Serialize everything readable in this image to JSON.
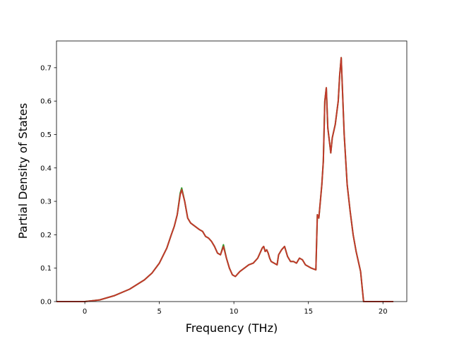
{
  "chart_data": {
    "type": "line",
    "title": "",
    "xlabel": "Frequency (THz)",
    "ylabel": "Partial Density of States",
    "xlim": [
      -1.9,
      21.6
    ],
    "ylim": [
      0.0,
      0.78
    ],
    "x_ticks": [
      0,
      5,
      10,
      15,
      20
    ],
    "y_ticks": [
      0.0,
      0.1,
      0.2,
      0.3,
      0.4,
      0.5,
      0.6,
      0.7
    ],
    "x_tick_labels": [
      "0",
      "5",
      "10",
      "15",
      "20"
    ],
    "y_tick_labels": [
      "0.0",
      "0.1",
      "0.2",
      "0.3",
      "0.4",
      "0.5",
      "0.6",
      "0.7"
    ],
    "grid": false,
    "legend": "none",
    "series": [
      {
        "color": "#2ca02c",
        "x": [
          -1.9,
          0.0,
          1.0,
          2.0,
          3.0,
          4.0,
          4.5,
          5.0,
          5.5,
          5.8,
          6.0,
          6.2,
          6.4,
          6.5,
          6.7,
          6.9,
          7.1,
          7.4,
          7.7,
          7.9,
          8.1,
          8.3,
          8.5,
          8.7,
          8.9,
          9.1,
          9.3,
          9.5,
          9.7,
          9.9,
          10.1,
          10.4,
          10.7,
          11.0,
          11.3,
          11.6,
          11.9,
          12.0,
          12.1,
          12.2,
          12.3,
          12.4,
          12.5,
          12.7,
          12.9,
          13.0,
          13.2,
          13.4,
          13.6,
          13.8,
          14.0,
          14.2,
          14.4,
          14.6,
          14.8,
          15.0,
          15.2,
          15.5,
          15.6,
          15.7,
          15.9,
          16.0,
          16.1,
          16.2,
          16.3,
          16.5,
          16.6,
          16.8,
          17.0,
          17.1,
          17.2,
          17.4,
          17.6,
          17.8,
          18.0,
          18.2,
          18.5,
          18.7,
          19.0,
          20.7
        ],
        "values": [
          0.0,
          0.0,
          0.005,
          0.018,
          0.037,
          0.065,
          0.085,
          0.115,
          0.16,
          0.2,
          0.225,
          0.26,
          0.325,
          0.34,
          0.3,
          0.25,
          0.235,
          0.225,
          0.215,
          0.21,
          0.195,
          0.19,
          0.18,
          0.165,
          0.145,
          0.14,
          0.17,
          0.13,
          0.1,
          0.08,
          0.075,
          0.09,
          0.1,
          0.11,
          0.115,
          0.13,
          0.16,
          0.165,
          0.15,
          0.155,
          0.145,
          0.13,
          0.12,
          0.115,
          0.11,
          0.14,
          0.155,
          0.165,
          0.135,
          0.12,
          0.12,
          0.115,
          0.13,
          0.125,
          0.11,
          0.105,
          0.1,
          0.095,
          0.26,
          0.25,
          0.35,
          0.42,
          0.6,
          0.64,
          0.52,
          0.445,
          0.49,
          0.53,
          0.6,
          0.68,
          0.73,
          0.5,
          0.35,
          0.27,
          0.2,
          0.15,
          0.09,
          0.0,
          0.0,
          0.0
        ]
      },
      {
        "color": "#c0392b",
        "x": [
          -1.9,
          0.0,
          1.0,
          2.0,
          3.0,
          4.0,
          4.5,
          5.0,
          5.5,
          5.8,
          6.0,
          6.2,
          6.4,
          6.5,
          6.7,
          6.9,
          7.1,
          7.4,
          7.7,
          7.9,
          8.1,
          8.3,
          8.5,
          8.7,
          8.9,
          9.1,
          9.3,
          9.5,
          9.7,
          9.9,
          10.1,
          10.4,
          10.7,
          11.0,
          11.3,
          11.6,
          11.9,
          12.0,
          12.1,
          12.2,
          12.3,
          12.4,
          12.5,
          12.7,
          12.9,
          13.0,
          13.2,
          13.4,
          13.6,
          13.8,
          14.0,
          14.2,
          14.4,
          14.6,
          14.8,
          15.0,
          15.2,
          15.5,
          15.6,
          15.7,
          15.9,
          16.0,
          16.1,
          16.2,
          16.3,
          16.5,
          16.6,
          16.8,
          17.0,
          17.1,
          17.2,
          17.4,
          17.6,
          17.8,
          18.0,
          18.2,
          18.5,
          18.7,
          19.0,
          20.7
        ],
        "values": [
          0.0,
          0.0,
          0.005,
          0.018,
          0.037,
          0.065,
          0.085,
          0.115,
          0.16,
          0.2,
          0.225,
          0.26,
          0.32,
          0.335,
          0.3,
          0.25,
          0.235,
          0.225,
          0.215,
          0.21,
          0.195,
          0.19,
          0.18,
          0.165,
          0.145,
          0.14,
          0.165,
          0.13,
          0.1,
          0.08,
          0.075,
          0.09,
          0.1,
          0.11,
          0.115,
          0.13,
          0.16,
          0.165,
          0.15,
          0.155,
          0.145,
          0.13,
          0.12,
          0.115,
          0.11,
          0.14,
          0.155,
          0.165,
          0.135,
          0.12,
          0.12,
          0.115,
          0.13,
          0.125,
          0.11,
          0.105,
          0.1,
          0.095,
          0.26,
          0.25,
          0.35,
          0.42,
          0.6,
          0.64,
          0.52,
          0.445,
          0.49,
          0.53,
          0.6,
          0.68,
          0.73,
          0.5,
          0.35,
          0.27,
          0.2,
          0.15,
          0.09,
          0.0,
          0.0,
          0.0
        ]
      }
    ]
  }
}
